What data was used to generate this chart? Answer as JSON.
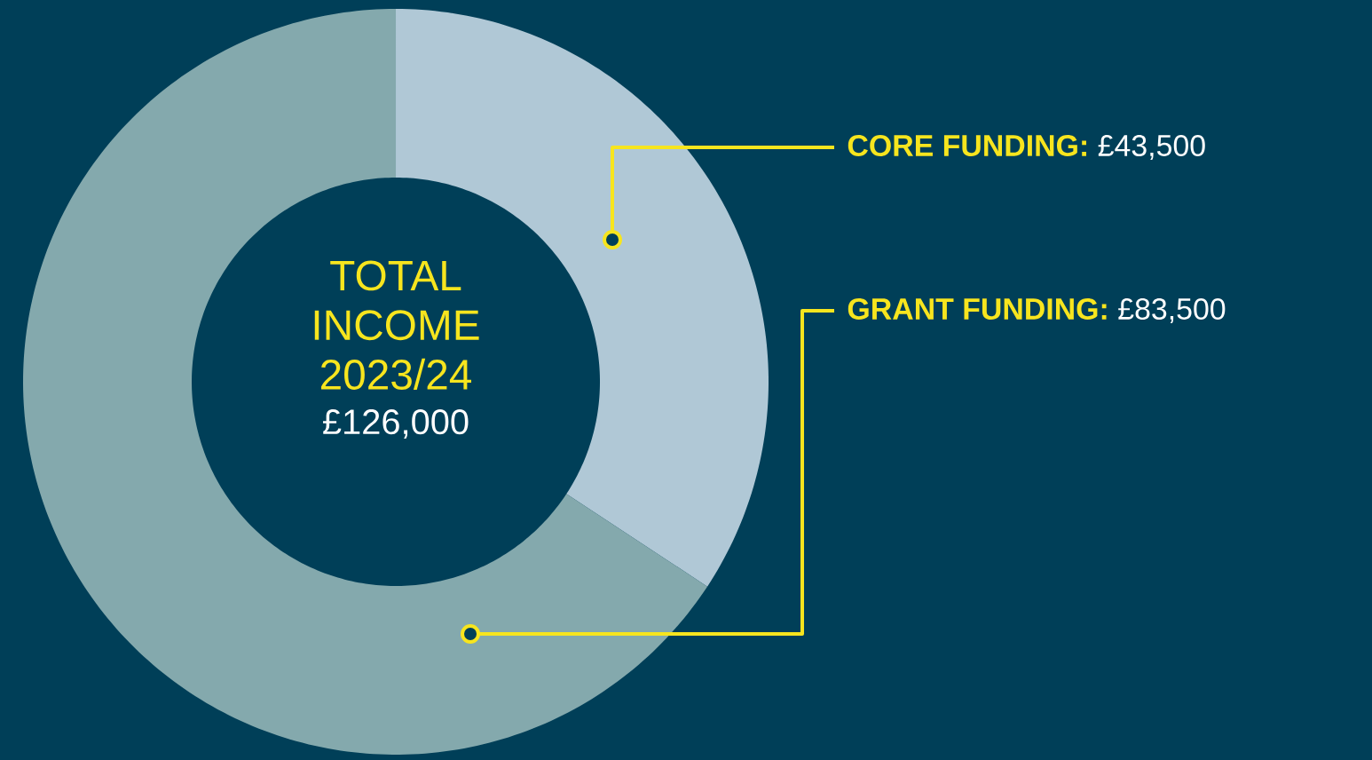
{
  "chart_data": {
    "type": "donut",
    "title": "TOTAL INCOME 2023/24",
    "subtitle": "£126,000",
    "categories": [
      "**CORE FUNDING:** £43,500",
      "**GRANT FUNDING:** £83,500"
    ],
    "values": [
      43500,
      83500
    ],
    "colors": [
      "#b0c8d6",
      "#84a9ad"
    ]
  }
}
